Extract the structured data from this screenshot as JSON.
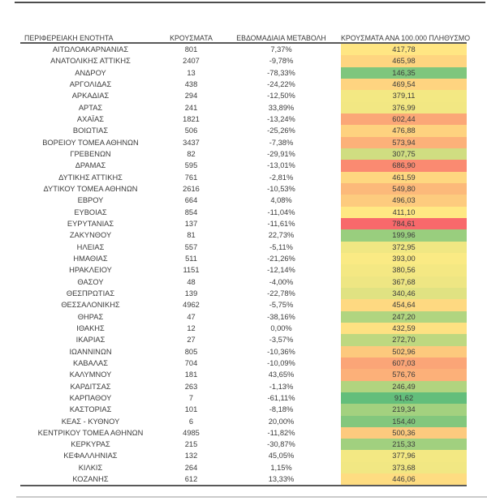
{
  "chart_data": {
    "type": "table",
    "columns": [
      "ΠΕΡΙΦΕΡΕΙΑΚΗ ΕΝΟΤΗΤΑ",
      "ΚΡΟΥΣΜΑΤΑ",
      "ΕΒΔΟΜΑΔΙΑΙΑ ΜΕΤΑΒΟΛΗ",
      "ΚΡΟΥΣΜΑΤΑ ΑΝΑ 100.000 ΠΛΗΘΥΣΜΟ"
    ],
    "color_scale": {
      "description": "3-color scale on ΚΡΟΥΣΜΑΤΑ ΑΝΑ 100.000 ΠΛΗΘΥΣΜΟ column",
      "min_value": 91.62,
      "min_color": "#63BE7B",
      "mid_value": 402.05,
      "mid_color": "#FFEB84",
      "max_value": 784.61,
      "max_color": "#F8696B"
    },
    "rows": [
      {
        "region": "ΑΙΤΩΛΟΑΚΑΡΝΑΝΙΑΣ",
        "cases": "801",
        "weekly_change": "7,37%",
        "per_100k": "417,78"
      },
      {
        "region": "ΑΝΑΤΟΛΙΚΗΣ ΑΤΤΙΚΗΣ",
        "cases": "2407",
        "weekly_change": "-9,78%",
        "per_100k": "465,98"
      },
      {
        "region": "ΑΝΔΡΟΥ",
        "cases": "13",
        "weekly_change": "-78,33%",
        "per_100k": "146,35"
      },
      {
        "region": "ΑΡΓΟΛΙΔΑΣ",
        "cases": "438",
        "weekly_change": "-24,22%",
        "per_100k": "469,54"
      },
      {
        "region": "ΑΡΚΑΔΙΑΣ",
        "cases": "294",
        "weekly_change": "-12,50%",
        "per_100k": "379,11"
      },
      {
        "region": "ΑΡΤΑΣ",
        "cases": "241",
        "weekly_change": "33,89%",
        "per_100k": "376,99"
      },
      {
        "region": "ΑΧΑΪΑΣ",
        "cases": "1821",
        "weekly_change": "-13,24%",
        "per_100k": "602,44"
      },
      {
        "region": "ΒΟΙΩΤΙΑΣ",
        "cases": "506",
        "weekly_change": "-25,26%",
        "per_100k": "476,88"
      },
      {
        "region": "ΒΟΡΕΙΟΥ ΤΟΜΕΑ ΑΘΗΝΩΝ",
        "cases": "3437",
        "weekly_change": "-7,38%",
        "per_100k": "573,94"
      },
      {
        "region": "ΓΡΕΒΕΝΩΝ",
        "cases": "82",
        "weekly_change": "-29,91%",
        "per_100k": "307,75"
      },
      {
        "region": "ΔΡΑΜΑΣ",
        "cases": "595",
        "weekly_change": "-13,01%",
        "per_100k": "686,90"
      },
      {
        "region": "ΔΥΤΙΚΗΣ ΑΤΤΙΚΗΣ",
        "cases": "761",
        "weekly_change": "-2,81%",
        "per_100k": "461,59"
      },
      {
        "region": "ΔΥΤΙΚΟΥ ΤΟΜΕΑ ΑΘΗΝΩΝ",
        "cases": "2616",
        "weekly_change": "-10,53%",
        "per_100k": "549,80"
      },
      {
        "region": "ΕΒΡΟΥ",
        "cases": "664",
        "weekly_change": "4,08%",
        "per_100k": "496,03"
      },
      {
        "region": "ΕΥΒΟΙΑΣ",
        "cases": "854",
        "weekly_change": "-11,04%",
        "per_100k": "411,10"
      },
      {
        "region": "ΕΥΡΥΤΑΝΙΑΣ",
        "cases": "137",
        "weekly_change": "-11,61%",
        "per_100k": "784,61"
      },
      {
        "region": "ΖΑΚΥΝΘΟΥ",
        "cases": "81",
        "weekly_change": "22,73%",
        "per_100k": "199,96"
      },
      {
        "region": "ΗΛΕΙΑΣ",
        "cases": "557",
        "weekly_change": "-5,11%",
        "per_100k": "372,95"
      },
      {
        "region": "ΗΜΑΘΙΑΣ",
        "cases": "511",
        "weekly_change": "-21,26%",
        "per_100k": "393,00"
      },
      {
        "region": "ΗΡΑΚΛΕΙΟΥ",
        "cases": "1151",
        "weekly_change": "-12,14%",
        "per_100k": "380,56"
      },
      {
        "region": "ΘΑΣΟΥ",
        "cases": "48",
        "weekly_change": "-4,00%",
        "per_100k": "367,68"
      },
      {
        "region": "ΘΕΣΠΡΩΤΙΑΣ",
        "cases": "139",
        "weekly_change": "-22,78%",
        "per_100k": "340,46"
      },
      {
        "region": "ΘΕΣΣΑΛΟΝΙΚΗΣ",
        "cases": "4962",
        "weekly_change": "-5,75%",
        "per_100k": "454,64"
      },
      {
        "region": "ΘΗΡΑΣ",
        "cases": "47",
        "weekly_change": "-38,16%",
        "per_100k": "247,20"
      },
      {
        "region": "ΙΘΑΚΗΣ",
        "cases": "12",
        "weekly_change": "0,00%",
        "per_100k": "432,59"
      },
      {
        "region": "ΙΚΑΡΙΑΣ",
        "cases": "27",
        "weekly_change": "-3,57%",
        "per_100k": "272,70"
      },
      {
        "region": "ΙΩΑΝΝΙΝΩΝ",
        "cases": "805",
        "weekly_change": "-10,36%",
        "per_100k": "502,96"
      },
      {
        "region": "ΚΑΒΑΛΑΣ",
        "cases": "704",
        "weekly_change": "-10,09%",
        "per_100k": "607,03"
      },
      {
        "region": "ΚΑΛΥΜΝΟΥ",
        "cases": "181",
        "weekly_change": "43,65%",
        "per_100k": "576,76"
      },
      {
        "region": "ΚΑΡΔΙΤΣΑΣ",
        "cases": "263",
        "weekly_change": "-1,13%",
        "per_100k": "246,49"
      },
      {
        "region": "ΚΑΡΠΑΘΟΥ",
        "cases": "7",
        "weekly_change": "-61,11%",
        "per_100k": "91,62"
      },
      {
        "region": "ΚΑΣΤΟΡΙΑΣ",
        "cases": "101",
        "weekly_change": "-8,18%",
        "per_100k": "219,34"
      },
      {
        "region": "ΚΕΑΣ - ΚΥΘΝΟΥ",
        "cases": "6",
        "weekly_change": "20,00%",
        "per_100k": "154,40"
      },
      {
        "region": "ΚΕΝΤΡΙΚΟΥ ΤΟΜΕΑ ΑΘΗΝΩΝ",
        "cases": "4985",
        "weekly_change": "-11,82%",
        "per_100k": "500,36"
      },
      {
        "region": "ΚΕΡΚΥΡΑΣ",
        "cases": "215",
        "weekly_change": "-30,87%",
        "per_100k": "215,33"
      },
      {
        "region": "ΚΕΦΑΛΛΗΝΙΑΣ",
        "cases": "132",
        "weekly_change": "45,05%",
        "per_100k": "377,96"
      },
      {
        "region": "ΚΙΛΚΙΣ",
        "cases": "264",
        "weekly_change": "1,15%",
        "per_100k": "373,68"
      },
      {
        "region": "ΚΟΖΑΝΗΣ",
        "cases": "612",
        "weekly_change": "13,33%",
        "per_100k": "446,06"
      }
    ]
  }
}
